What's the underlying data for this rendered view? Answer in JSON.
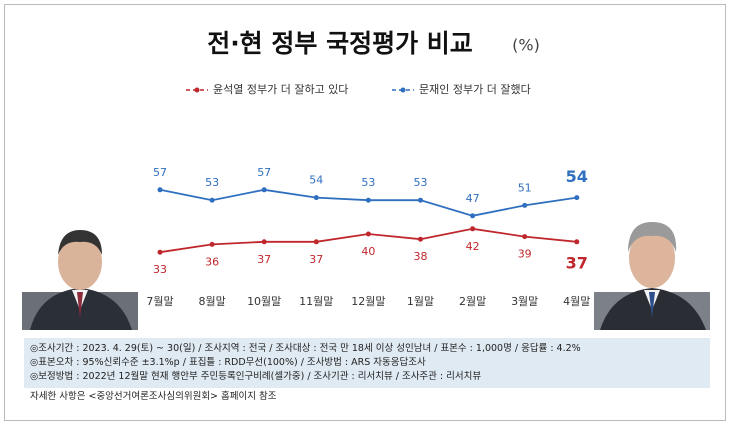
{
  "chart_data": {
    "type": "line",
    "title": "전·현 정부 국정평가 비교",
    "unit_label": "(%)",
    "categories": [
      "7월말",
      "8월말",
      "10월말",
      "11월말",
      "12월말",
      "1월말",
      "2월말",
      "3월말",
      "4월말"
    ],
    "series": [
      {
        "name": "윤석열 정부가 더 잘하고 있다",
        "color": "#c0272d",
        "values": [
          33,
          36,
          37,
          37,
          40,
          38,
          42,
          39,
          37
        ]
      },
      {
        "name": "문재인 정부가 더 잘했다",
        "color": "#2f6fbf",
        "values": [
          57,
          53,
          57,
          54,
          53,
          53,
          47,
          51,
          54
        ]
      }
    ],
    "ylim": [
      20,
      70
    ],
    "grid": false,
    "notes": [
      "◎조사기간 : 2023. 4. 29(토) ~ 30(일) / 조사지역 : 전국 / 조사대상 : 전국 만 18세 이상 성인남녀 / 표본수 : 1,000명 / 응답률 : 4.2%",
      "◎표본오차 : 95%신뢰수준 ±3.1%p / 표집틀 : RDD무선(100%) / 조사방법 : ARS 자동응답조사",
      "◎보정방법 : 2022년 12월말 현재 행안부 주민등록인구비례(셀가중) / 조사기관 : 리서치뷰 / 조사주관 : 리서치뷰",
      "자세한 사항은 <중앙선거여론조사심의위원회> 홈페이지 참조"
    ]
  }
}
